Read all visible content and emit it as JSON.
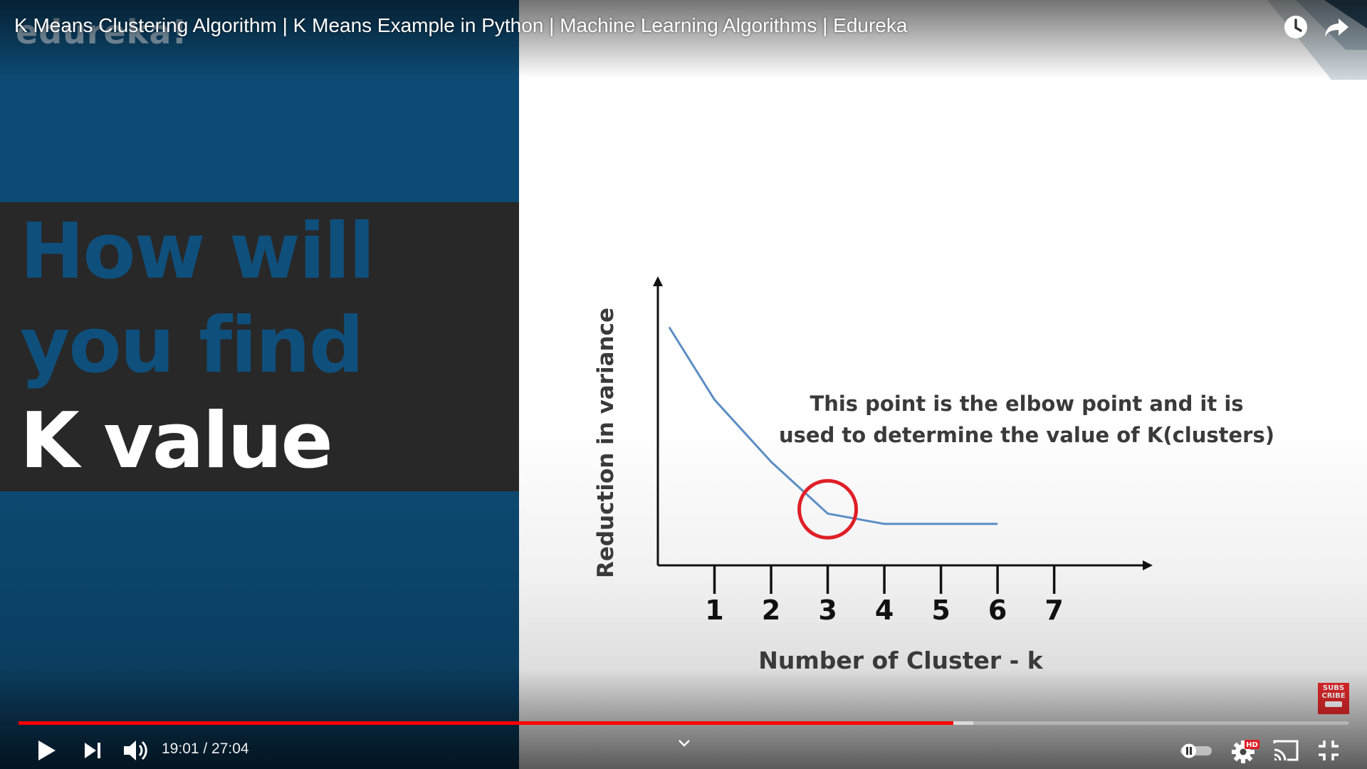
{
  "player": {
    "title": "K Means Clustering Algorithm | K Means Example in Python | Machine Learning Algorithms | Edureka",
    "brand_watermark": "edureka!",
    "icons": {
      "watch_later": "clock-icon",
      "share": "share-arrow-icon",
      "play": "play-icon",
      "next": "next-icon",
      "volume": "volume-icon",
      "autoplay": "autoplay-toggle-icon",
      "settings": "gear-icon",
      "cast": "cast-icon",
      "fullscreen_exit": "exit-fullscreen-icon",
      "chapter": "chevron-down-icon"
    },
    "settings_badge": "HD",
    "time": {
      "display": "19:01 / 27:04",
      "current": "19:01",
      "duration": "27:04"
    },
    "progress": {
      "played_fraction": 0.703,
      "buffered_fraction": 0.718
    },
    "subscribe_badge": {
      "lines": [
        "SUBS",
        "CRIBE"
      ]
    },
    "colors": {
      "progress_red": "#ff0000",
      "slide_blue": "#0f4f7c",
      "slide_dark": "#282828",
      "curve_blue": "#5b8ec4",
      "elbow_red": "#e01e26"
    }
  },
  "slide": {
    "line1": "How will",
    "line2": "you find",
    "line3": "K value"
  },
  "chart_data": {
    "type": "line",
    "xlabel": "Number of Cluster - k",
    "ylabel": "Reduction in variance",
    "x_ticks": [
      "1",
      "2",
      "3",
      "4",
      "5",
      "6",
      "7"
    ],
    "x": [
      0.2,
      1,
      2,
      3,
      4,
      5,
      6
    ],
    "y": [
      9.2,
      6.4,
      4.0,
      2.0,
      1.6,
      1.6,
      1.6
    ],
    "xlim": [
      0,
      8.3
    ],
    "ylim": [
      0,
      11
    ],
    "elbow": {
      "x": 3,
      "y": 2.0
    },
    "annotation": [
      "This point is the elbow point and it is",
      "used to determine the value of K(clusters)"
    ]
  }
}
